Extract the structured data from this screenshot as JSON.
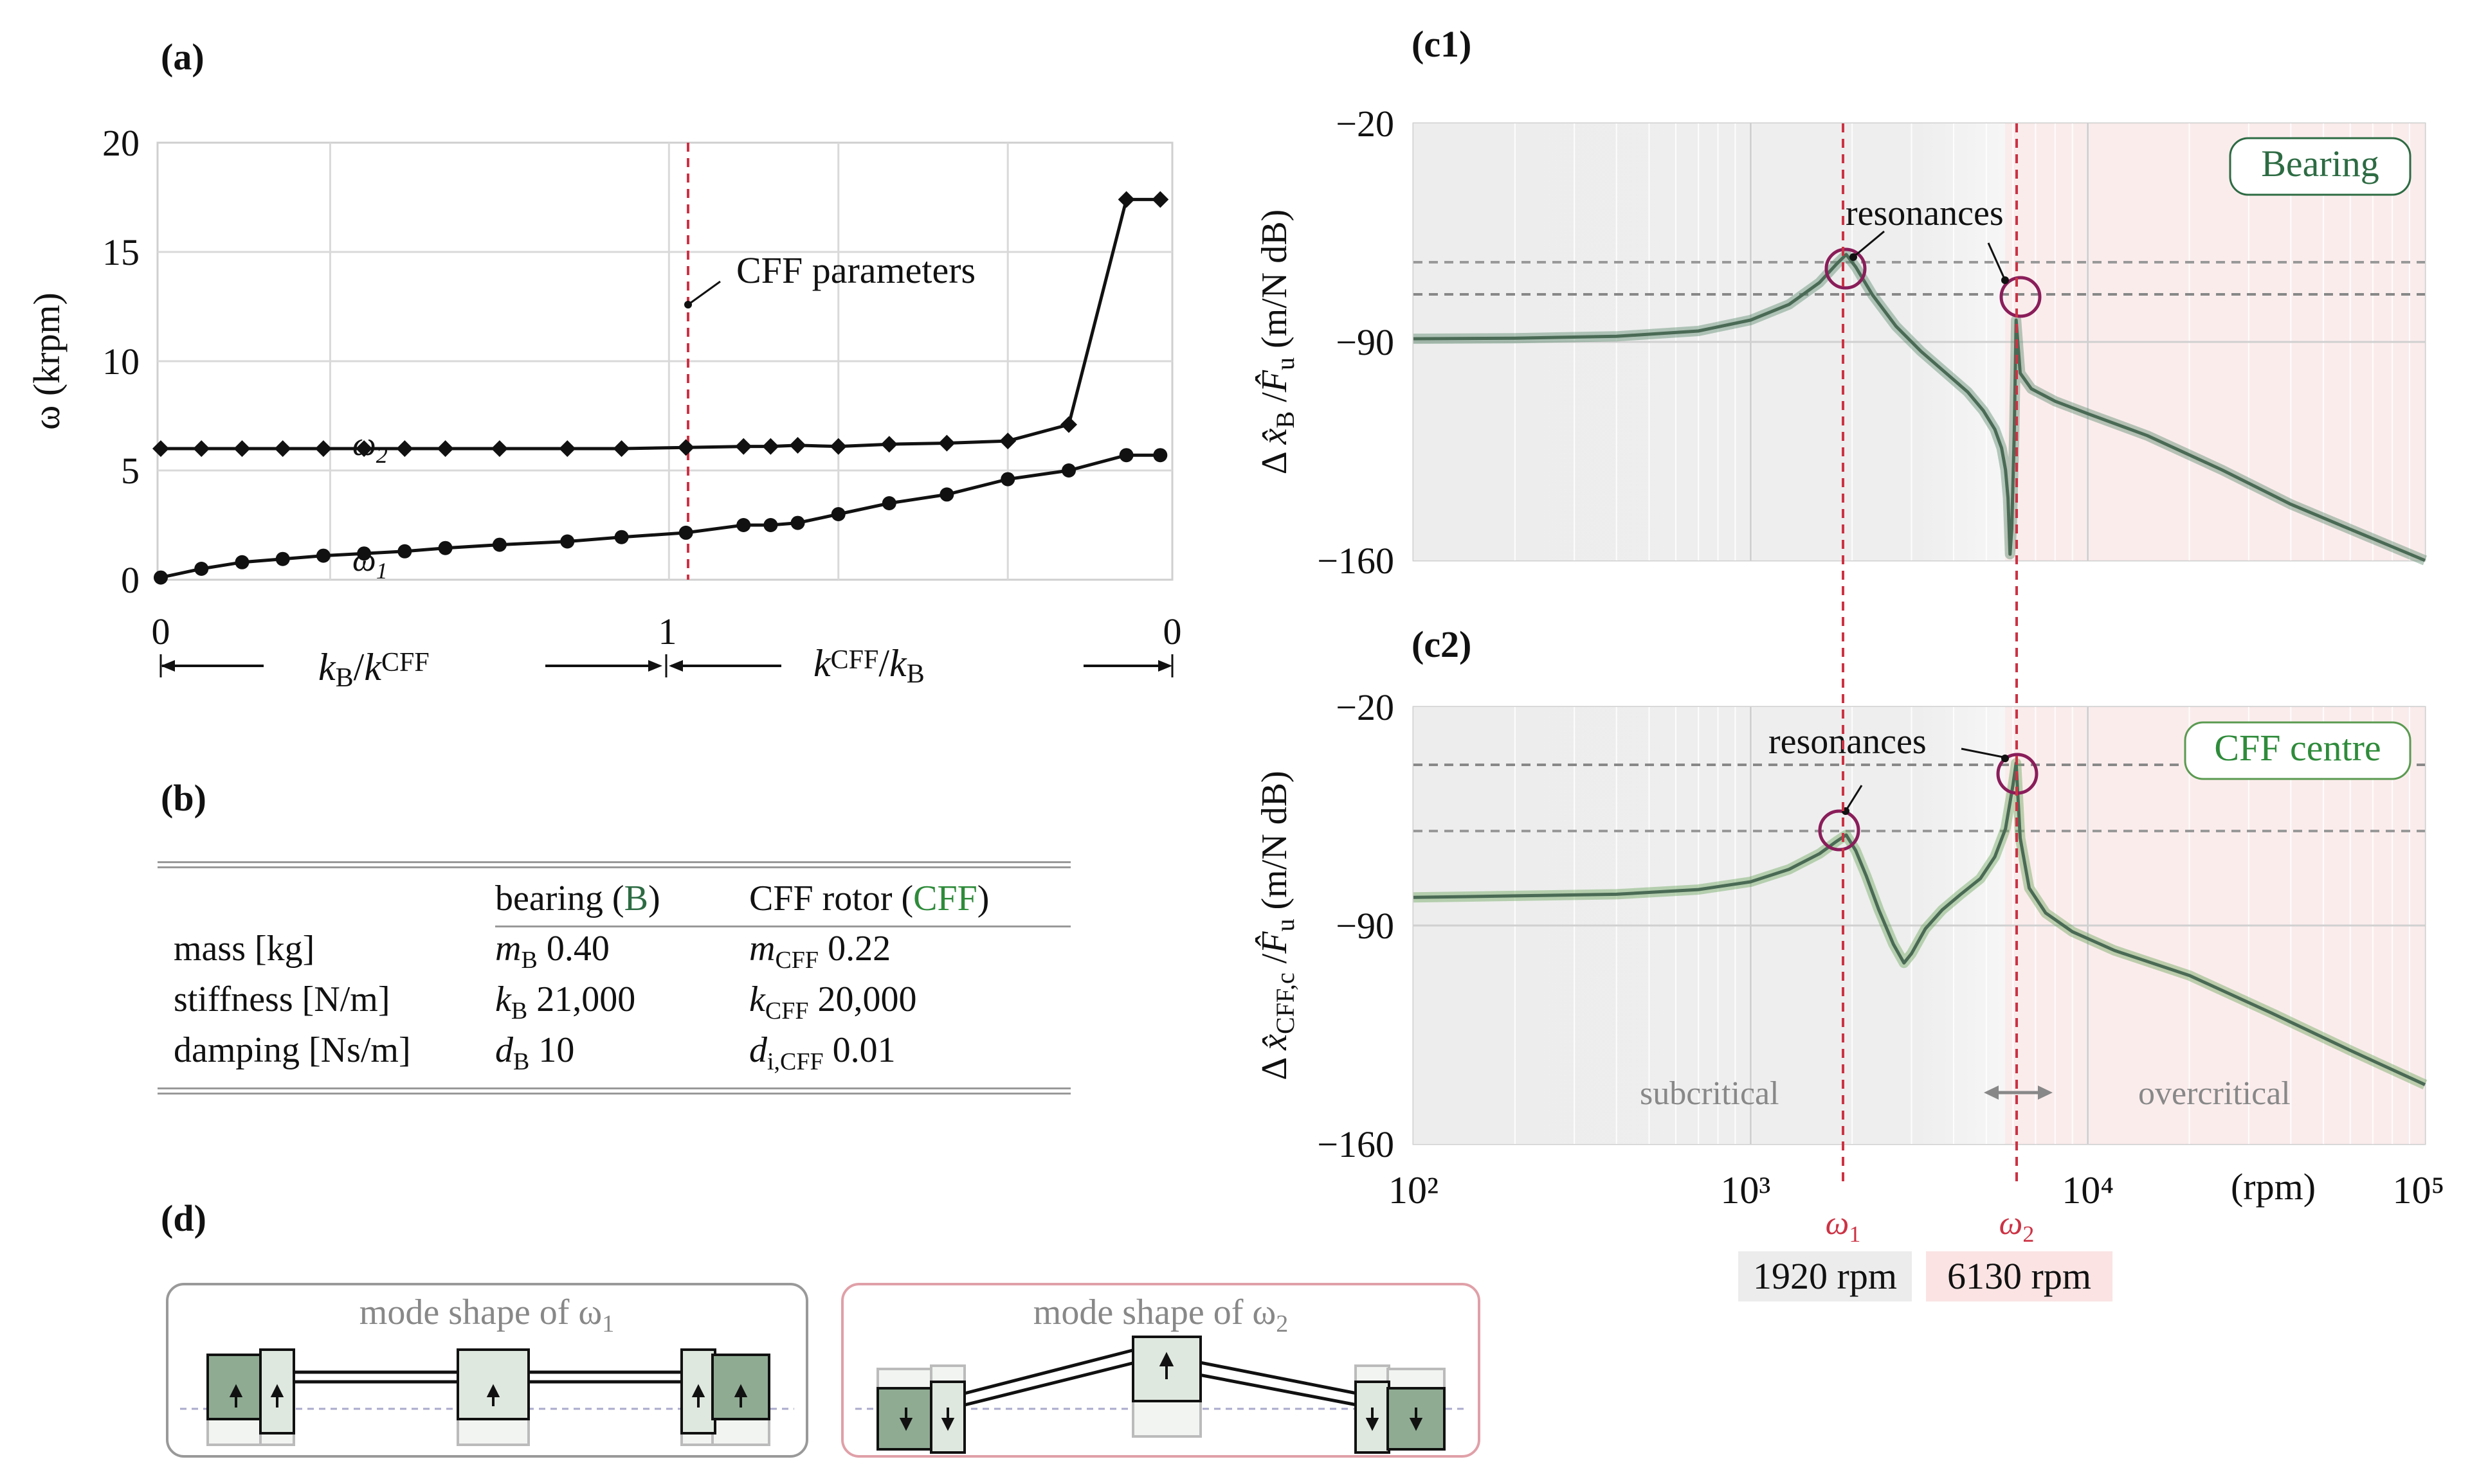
{
  "panel_labels": {
    "a": "(a)",
    "b": "(b)",
    "c1": "(c1)",
    "c2": "(c2)",
    "d": "(d)"
  },
  "colors": {
    "red_dashed": "#cc3344",
    "bearing_curve": "#5f8f72",
    "cff_curve": "#6fa860",
    "circle": "#8a1d5a",
    "subcritical_bg": "#eeeeee",
    "overcritical_bg": "#fbeaea"
  },
  "chart_data": [
    {
      "id": "a",
      "type": "line",
      "ylabel": "ω (krpm)",
      "ylim": [
        0,
        20
      ],
      "yticks": [
        0,
        5,
        10,
        15,
        20
      ],
      "xticks": [
        "0",
        "1",
        "0"
      ],
      "x_axis_left": "kB/kCFF",
      "x_axis_right": "kCFF/kB",
      "annotation": "CFF parameters",
      "series": [
        {
          "name": "ω2",
          "marker": "diamond",
          "x": [
            0.0,
            0.12,
            0.24,
            0.36,
            0.48,
            0.6,
            0.72,
            0.84,
            1.0,
            1.2,
            1.36,
            1.55,
            1.72,
            1.8,
            1.88,
            2.0,
            2.15,
            2.32,
            2.5,
            2.68,
            2.85,
            2.95
          ],
          "y": [
            6.0,
            6.0,
            6.0,
            6.0,
            6.0,
            6.0,
            6.0,
            6.0,
            6.0,
            6.0,
            6.0,
            6.05,
            6.1,
            6.1,
            6.15,
            6.1,
            6.2,
            6.25,
            6.35,
            7.1,
            17.4,
            17.4
          ]
        },
        {
          "name": "ω1",
          "marker": "circle",
          "x": [
            0.0,
            0.12,
            0.24,
            0.36,
            0.48,
            0.6,
            0.72,
            0.84,
            1.0,
            1.2,
            1.36,
            1.55,
            1.72,
            1.8,
            1.88,
            2.0,
            2.15,
            2.32,
            2.5,
            2.68,
            2.85,
            2.95
          ],
          "y": [
            0.1,
            0.5,
            0.8,
            0.95,
            1.1,
            1.2,
            1.3,
            1.45,
            1.6,
            1.75,
            1.95,
            2.15,
            2.5,
            2.5,
            2.6,
            3.0,
            3.5,
            3.9,
            4.6,
            5.0,
            5.7,
            5.7
          ]
        }
      ]
    },
    {
      "id": "c1",
      "type": "line",
      "ylabel": "Δ x̂B / F̂u (m/N dB)",
      "xscale": "log",
      "xlim": [
        100,
        100000
      ],
      "ylim": [
        -160,
        -20
      ],
      "yticks": [
        "−20",
        "−90",
        "−160"
      ],
      "legend": "Bearing",
      "annotation": "resonances",
      "resonances_rpm": [
        1920,
        6130
      ],
      "series": [
        {
          "name": "Bearing",
          "x": [
            100,
            200,
            400,
            700,
            1000,
            1300,
            1600,
            1800,
            1920,
            2050,
            2300,
            2700,
            3200,
            3800,
            4400,
            4900,
            5300,
            5550,
            5700,
            5800,
            5880,
            5950,
            6050,
            6130,
            6300,
            6800,
            8000,
            10000,
            15000,
            25000,
            40000,
            60000,
            100000
          ],
          "y": [
            -89,
            -88.8,
            -88.2,
            -86.5,
            -83,
            -78,
            -71,
            -65,
            -62,
            -66,
            -75,
            -85,
            -93,
            -100,
            -106,
            -112,
            -118,
            -124,
            -131,
            -140,
            -158,
            -150,
            -120,
            -83,
            -100,
            -105,
            -109,
            -113,
            -120,
            -131,
            -142,
            -150,
            -160
          ]
        }
      ]
    },
    {
      "id": "c2",
      "type": "line",
      "ylabel": "Δ x̂CFF,c / F̂u (m/N dB)",
      "xscale": "log",
      "xlim": [
        100,
        100000
      ],
      "ylim": [
        -160,
        -20
      ],
      "yticks": [
        "−20",
        "−90",
        "−160"
      ],
      "xtick_labels": [
        "10²",
        "10³",
        "10⁴",
        "10⁵"
      ],
      "xunit": "(rpm)",
      "legend": "CFF centre",
      "annotation": "resonances",
      "region_labels": [
        "subcritical",
        "overcritical"
      ],
      "series": [
        {
          "name": "CFF centre",
          "x": [
            100,
            200,
            400,
            700,
            1000,
            1300,
            1600,
            1800,
            1920,
            2050,
            2200,
            2400,
            2650,
            2850,
            3000,
            3300,
            3700,
            4200,
            4800,
            5300,
            5700,
            6000,
            6130,
            6300,
            6700,
            7500,
            9000,
            12000,
            20000,
            35000,
            60000,
            100000
          ],
          "y": [
            -81,
            -80.5,
            -80,
            -78.5,
            -76,
            -72,
            -67,
            -63,
            -61,
            -66,
            -74,
            -85,
            -96,
            -102,
            -99,
            -91,
            -85,
            -80,
            -75,
            -68,
            -59,
            -45,
            -38,
            -62,
            -78,
            -86,
            -92,
            -98,
            -106,
            -118,
            -130,
            -141
          ]
        }
      ]
    }
  ],
  "table": {
    "header": {
      "col1": "bearing (",
      "col1_sym": "B",
      "col1_end": ")",
      "col2": "CFF rotor (",
      "col2_sym": "CFF",
      "col2_end": ")"
    },
    "rows": [
      {
        "label": "mass [kg]",
        "sym1": "m",
        "sub1": "B",
        "val1": "0.40",
        "sym2": "m",
        "sub2": "CFF",
        "val2": "0.22"
      },
      {
        "label": "stiffness [N/m]",
        "sym1": "k",
        "sub1": "B",
        "val1": "21,000",
        "sym2": "k",
        "sub2": "CFF",
        "val2": "20,000"
      },
      {
        "label": "damping [Ns/m]",
        "sym1": "d",
        "sub1": "B",
        "val1": "10",
        "sym2": "d",
        "sub2": "i,CFF",
        "val2": "0.01"
      }
    ]
  },
  "omega": {
    "w1": "ω",
    "w1_sub": "1",
    "w2": "ω",
    "w2_sub": "2",
    "w1_rpm": "1920 rpm",
    "w2_rpm": "6130 rpm"
  },
  "mode_shapes": {
    "left_title": "mode shape of ω",
    "left_sub": "1",
    "right_title": "mode shape of ω",
    "right_sub": "2"
  }
}
